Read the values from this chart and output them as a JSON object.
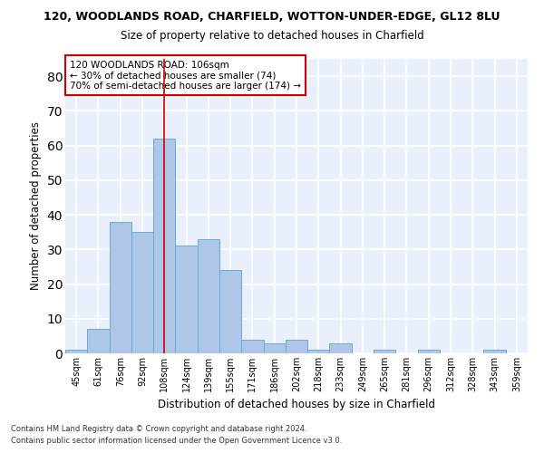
{
  "title_line1": "120, WOODLANDS ROAD, CHARFIELD, WOTTON-UNDER-EDGE, GL12 8LU",
  "title_line2": "Size of property relative to detached houses in Charfield",
  "xlabel": "Distribution of detached houses by size in Charfield",
  "ylabel": "Number of detached properties",
  "bar_color": "#aec6e8",
  "bar_edge_color": "#6aaad4",
  "background_color": "#eaf0fb",
  "grid_color": "#ffffff",
  "categories": [
    "45sqm",
    "61sqm",
    "76sqm",
    "92sqm",
    "108sqm",
    "124sqm",
    "139sqm",
    "155sqm",
    "171sqm",
    "186sqm",
    "202sqm",
    "218sqm",
    "233sqm",
    "249sqm",
    "265sqm",
    "281sqm",
    "296sqm",
    "312sqm",
    "328sqm",
    "343sqm",
    "359sqm"
  ],
  "values": [
    1,
    7,
    38,
    35,
    62,
    31,
    33,
    24,
    4,
    3,
    4,
    1,
    3,
    0,
    1,
    0,
    1,
    0,
    0,
    1,
    0
  ],
  "ylim": [
    0,
    85
  ],
  "yticks": [
    0,
    10,
    20,
    30,
    40,
    50,
    60,
    70,
    80
  ],
  "marker_idx": 4,
  "marker_label_line1": "120 WOODLANDS ROAD: 106sqm",
  "marker_label_line2": "← 30% of detached houses are smaller (74)",
  "marker_label_line3": "70% of semi-detached houses are larger (174) →",
  "annotation_box_color": "#cc0000",
  "footnote1": "Contains HM Land Registry data © Crown copyright and database right 2024.",
  "footnote2": "Contains public sector information licensed under the Open Government Licence v3.0."
}
